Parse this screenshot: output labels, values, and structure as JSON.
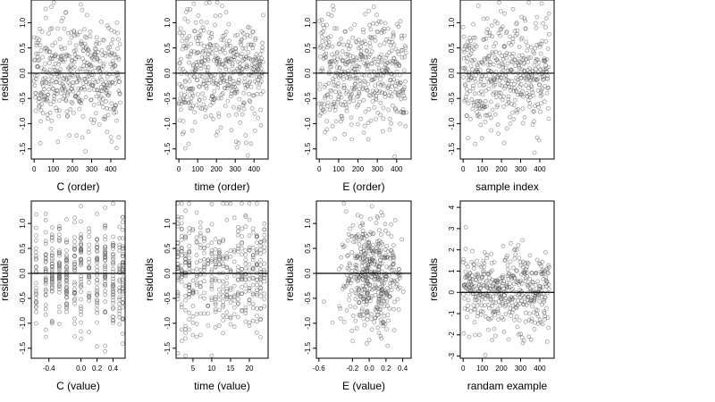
{
  "chart_data": [
    {
      "type": "scatter",
      "xlabel": "C (order)",
      "ylabel": "residuals",
      "xlim": [
        -15,
        475
      ],
      "ylim": [
        -1.7,
        1.45
      ],
      "xticks": [
        0,
        100,
        200,
        300,
        400
      ],
      "yticks": [
        -1.5,
        -1.0,
        -0.5,
        0.0,
        0.5,
        1.0
      ],
      "ytick_labels": [
        "-1.5",
        "-1.0",
        "-0.5",
        "0.0",
        "0.5",
        "1.0"
      ],
      "hline": 0,
      "n_points": 450,
      "x_kind": "order",
      "seed": 11
    },
    {
      "type": "scatter",
      "xlabel": "time (order)",
      "ylabel": "residuals",
      "xlim": [
        -15,
        475
      ],
      "ylim": [
        -1.7,
        1.45
      ],
      "xticks": [
        0,
        100,
        200,
        300,
        400
      ],
      "yticks": [
        -1.5,
        -1.0,
        -0.5,
        0.0,
        0.5,
        1.0
      ],
      "ytick_labels": [
        "-1.5",
        "-1.0",
        "-0.5",
        "0.0",
        "0.5",
        "1.0"
      ],
      "hline": 0,
      "n_points": 450,
      "x_kind": "order",
      "seed": 23
    },
    {
      "type": "scatter",
      "xlabel": "E (order)",
      "ylabel": "residuals",
      "xlim": [
        -15,
        475
      ],
      "ylim": [
        -1.7,
        1.45
      ],
      "xticks": [
        0,
        100,
        200,
        300,
        400
      ],
      "yticks": [
        -1.5,
        -1.0,
        -0.5,
        0.0,
        0.5,
        1.0
      ],
      "ytick_labels": [
        "-1.5",
        "-1.0",
        "-0.5",
        "0.0",
        "0.5",
        "1.0"
      ],
      "hline": 0,
      "n_points": 450,
      "x_kind": "order",
      "seed": 37
    },
    {
      "type": "scatter",
      "xlabel": "sample index",
      "ylabel": "residuals",
      "xlim": [
        -15,
        475
      ],
      "ylim": [
        -1.7,
        1.45
      ],
      "xticks": [
        0,
        100,
        200,
        300,
        400
      ],
      "yticks": [
        -1.5,
        -1.0,
        -0.5,
        0.0,
        0.5,
        1.0
      ],
      "ytick_labels": [
        "-1.5",
        "-1.0",
        "-0.5",
        "0.0",
        "0.5",
        "1.0"
      ],
      "hline": 0,
      "n_points": 450,
      "x_kind": "order",
      "seed": 41
    },
    {
      "type": "scatter",
      "xlabel": "C (value)",
      "ylabel": "residuals",
      "xlim": [
        -0.62,
        0.55
      ],
      "ylim": [
        -1.7,
        1.45
      ],
      "xticks": [
        -0.4,
        0.0,
        0.2,
        0.4
      ],
      "xtick_labels": [
        "-0.4",
        "0.0",
        "0.2",
        "0.4"
      ],
      "yticks": [
        -1.5,
        -1.0,
        -0.5,
        0.0,
        0.5,
        1.0
      ],
      "ytick_labels": [
        "-1.5",
        "-1.0",
        "-0.5",
        "0.0",
        "0.5",
        "1.0"
      ],
      "hline": 0,
      "n_points": 450,
      "x_kind": "discrete",
      "x_levels": [
        -0.56,
        -0.44,
        -0.36,
        -0.27,
        -0.18,
        -0.08,
        0.0,
        0.1,
        0.2,
        0.3,
        0.4,
        0.48,
        0.52
      ],
      "seed": 53
    },
    {
      "type": "scatter",
      "xlabel": "time (value)",
      "ylabel": "residuals",
      "xlim": [
        0.5,
        25
      ],
      "ylim": [
        -1.7,
        1.45
      ],
      "xticks": [
        5,
        10,
        15,
        20
      ],
      "yticks": [
        -1.5,
        -1.0,
        -0.5,
        0.0,
        0.5,
        1.0
      ],
      "ytick_labels": [
        "-1.5",
        "-1.0",
        "-0.5",
        "0.0",
        "0.5",
        "1.0"
      ],
      "hline": 0,
      "n_points": 450,
      "x_kind": "discrete",
      "x_levels": [
        1,
        2,
        3,
        4,
        5,
        6,
        7,
        8,
        9,
        10,
        11,
        12,
        13,
        14,
        15,
        16,
        17,
        18,
        19,
        20,
        21,
        22,
        23,
        24
      ],
      "seed": 67
    },
    {
      "type": "scatter",
      "xlabel": "E (value)",
      "ylabel": "residuals",
      "xlim": [
        -0.63,
        0.5
      ],
      "ylim": [
        -1.7,
        1.45
      ],
      "xticks": [
        -0.6,
        -0.2,
        0.0,
        0.2,
        0.4
      ],
      "xtick_labels": [
        "-0.6",
        "-0.2",
        "0.0",
        "0.2",
        "0.4"
      ],
      "yticks": [
        -1.5,
        -1.0,
        -0.5,
        0.0,
        0.5,
        1.0
      ],
      "ytick_labels": [
        "-1.5",
        "-1.0",
        "-0.5",
        "0.0",
        "0.5",
        "1.0"
      ],
      "hline": 0,
      "n_points": 450,
      "x_kind": "continuous",
      "seed": 79
    },
    {
      "type": "scatter",
      "xlabel": "randam example",
      "ylabel": "residuals",
      "xlim": [
        -15,
        475
      ],
      "ylim": [
        -3.1,
        4.3
      ],
      "xticks": [
        0,
        100,
        200,
        300,
        400
      ],
      "yticks": [
        -3,
        -2,
        -1,
        0,
        1,
        2,
        3,
        4
      ],
      "ytick_labels": [
        "-3",
        "-2",
        "-1",
        "0",
        "1",
        "2",
        "3",
        "4"
      ],
      "hline": 0,
      "n_points": 450,
      "x_kind": "order",
      "seed": 97,
      "y_scale": 1.0
    }
  ]
}
